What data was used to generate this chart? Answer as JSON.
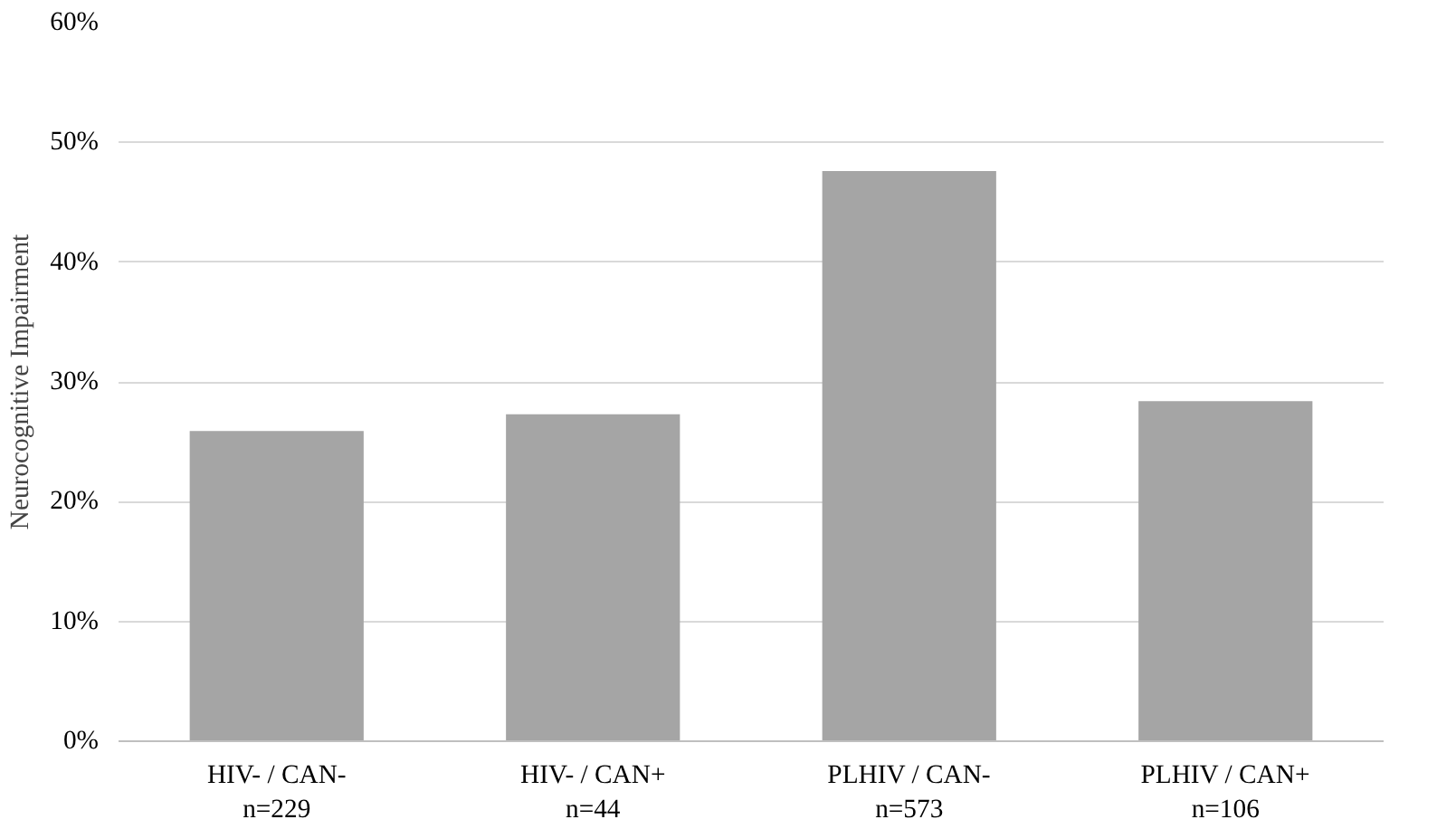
{
  "chart_data": {
    "type": "bar",
    "ylabel": "Neurocognitive Impairment",
    "categories": [
      "HIV- / CAN-\nn=229",
      "HIV- / CAN+\nn=44",
      "PLHIV / CAN-\nn=573",
      "PLHIV / CAN+\nn=106"
    ],
    "values": [
      25.9,
      27.3,
      47.6,
      28.4
    ],
    "color": "#a5a5a5",
    "ylim": [
      0,
      60
    ],
    "yticks": [
      {
        "value": 0,
        "label": "0%"
      },
      {
        "value": 10,
        "label": "10%"
      },
      {
        "value": 20,
        "label": "20%"
      },
      {
        "value": 30,
        "label": "30%"
      },
      {
        "value": 40,
        "label": "40%"
      },
      {
        "value": 50,
        "label": "50%"
      },
      {
        "value": 60,
        "label": "60%"
      }
    ],
    "grid": "y"
  }
}
